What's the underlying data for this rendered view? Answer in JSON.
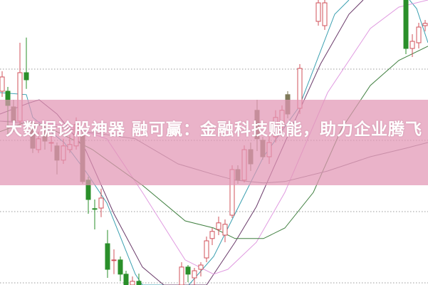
{
  "headline": "大数据诊股神器 融可赢：金融科技赋能，助力企业腾飞",
  "banner_color": "#e296b4",
  "chart_data": {
    "type": "candlestick",
    "title": "",
    "xlabel": "",
    "ylabel": "",
    "ylim": [
      0,
      100
    ],
    "grid": "horizontal-dotted",
    "colors": {
      "up": "#d0505a",
      "down": "#2a8f2a",
      "down_dim": "#7f7a5a"
    },
    "candles": [
      {
        "open": 73,
        "close": 68,
        "high": 75,
        "low": 66,
        "dir": "up"
      },
      {
        "open": 68,
        "close": 63,
        "high": 69.5,
        "low": 52.5,
        "dir": "down"
      },
      {
        "open": 62.5,
        "close": 57.5,
        "high": 65,
        "low": 53.8,
        "dir": "dim"
      },
      {
        "open": 57.5,
        "close": 74.5,
        "high": 85,
        "low": 56,
        "dir": "up"
      },
      {
        "open": 74.5,
        "close": 72,
        "high": 86.8,
        "low": 68.8,
        "dir": "down"
      },
      {
        "open": 55.5,
        "close": 48,
        "high": 56.3,
        "low": 46.3,
        "dir": "dim"
      },
      {
        "open": 47.5,
        "close": 51.3,
        "high": 53.8,
        "low": 46.3,
        "dir": "up"
      },
      {
        "open": 53.8,
        "close": 50.5,
        "high": 56.3,
        "low": 47.5,
        "dir": "dim"
      },
      {
        "open": 50,
        "close": 50,
        "high": 52.5,
        "low": 46.8,
        "dir": "up"
      },
      {
        "open": 48.8,
        "close": 43.8,
        "high": 50,
        "low": 38.8,
        "dir": "dim"
      },
      {
        "open": 43.8,
        "close": 48.8,
        "high": 51.3,
        "low": 42.5,
        "dir": "up"
      },
      {
        "open": 47.5,
        "close": 49.3,
        "high": 52.5,
        "low": 46.3,
        "dir": "up"
      },
      {
        "open": 48.8,
        "close": 56.3,
        "high": 58.8,
        "low": 47.5,
        "dir": "up"
      },
      {
        "open": 52.5,
        "close": 36.3,
        "high": 53.8,
        "low": 35.5,
        "dir": "dim"
      },
      {
        "open": 36.8,
        "close": 30,
        "high": 38,
        "low": 25,
        "dir": "down"
      },
      {
        "open": 26.8,
        "close": 26.8,
        "high": 30,
        "low": 19.5,
        "dir": "down"
      },
      {
        "open": 27,
        "close": 30.5,
        "high": 33.8,
        "low": 23.8,
        "dir": "up"
      },
      {
        "open": 14.5,
        "close": 5.5,
        "high": 19.3,
        "low": 2.5,
        "dir": "down"
      },
      {
        "open": 8.8,
        "close": 8.8,
        "high": 12.5,
        "low": 3.8,
        "dir": "up"
      },
      {
        "open": 8.8,
        "close": 3.8,
        "high": 10,
        "low": 1.3,
        "dir": "down"
      },
      {
        "open": 3.8,
        "close": 0,
        "high": 5,
        "low": 0,
        "dir": "down"
      },
      {
        "open": 0,
        "close": 1.3,
        "high": 3,
        "low": 0,
        "dir": "up"
      },
      {
        "open": 1.3,
        "close": 0,
        "high": 4,
        "low": 0,
        "dir": "down"
      },
      {
        "open": 0,
        "close": 6.3,
        "high": 8,
        "low": 0,
        "dir": "up"
      },
      {
        "open": 6.3,
        "close": 3.8,
        "high": 7,
        "low": 1,
        "dir": "down"
      },
      {
        "open": 2.5,
        "close": 5,
        "high": 6,
        "low": 0,
        "dir": "up"
      },
      {
        "open": 5.5,
        "close": 7,
        "high": 8,
        "low": 3,
        "dir": "up"
      },
      {
        "open": 9.5,
        "close": 15.5,
        "high": 17,
        "low": 8,
        "dir": "up"
      },
      {
        "open": 16.3,
        "close": 18.8,
        "high": 20,
        "low": 14,
        "dir": "up"
      },
      {
        "open": 19.5,
        "close": 21.8,
        "high": 24,
        "low": 17.5,
        "dir": "up"
      },
      {
        "open": 17.5,
        "close": 21.3,
        "high": 23,
        "low": 15,
        "dir": "up"
      },
      {
        "open": 24.5,
        "close": 40.5,
        "high": 42,
        "low": 23.5,
        "dir": "up"
      },
      {
        "open": 40.5,
        "close": 36.8,
        "high": 42,
        "low": 35.5,
        "dir": "dim"
      },
      {
        "open": 36.8,
        "close": 47.5,
        "high": 49,
        "low": 36,
        "dir": "up"
      },
      {
        "open": 47.5,
        "close": 42.5,
        "high": 50,
        "low": 40,
        "dir": "dim"
      },
      {
        "open": 61.3,
        "close": 51.3,
        "high": 65,
        "low": 47,
        "dir": "dim"
      },
      {
        "open": 50.8,
        "close": 45,
        "high": 52,
        "low": 44,
        "dir": "dim"
      },
      {
        "open": 45,
        "close": 50,
        "high": 52.5,
        "low": 42.5,
        "dir": "up"
      },
      {
        "open": 52,
        "close": 58.8,
        "high": 61.3,
        "low": 50,
        "dir": "up"
      },
      {
        "open": 55.5,
        "close": 61.3,
        "high": 63,
        "low": 52,
        "dir": "up"
      },
      {
        "open": 60,
        "close": 66.8,
        "high": 68,
        "low": 58.5,
        "dir": "dim"
      },
      {
        "open": 62,
        "close": 76,
        "high": 77.5,
        "low": 60,
        "dir": "up"
      },
      {
        "open": 92.5,
        "close": 99,
        "high": 100,
        "low": 91,
        "dir": "up"
      },
      {
        "open": 91,
        "close": 99,
        "high": 100,
        "low": 89.5,
        "dir": "up"
      },
      {
        "open": 100,
        "close": 83,
        "high": 100,
        "low": 81,
        "dir": "down"
      },
      {
        "open": 83,
        "close": 85.5,
        "high": 88,
        "low": 80,
        "dir": "up"
      },
      {
        "open": 85,
        "close": 90.5,
        "high": 92,
        "low": 83,
        "dir": "up"
      },
      {
        "open": 91,
        "close": 91.8,
        "high": 93,
        "low": 89,
        "dir": "up"
      }
    ],
    "moving_averages": [
      {
        "color": "#3a9fb0",
        "points": [
          [
            0,
            67.5
          ],
          [
            37,
            66.8
          ],
          [
            46,
            58.8
          ],
          [
            90,
            50
          ],
          [
            120,
            40
          ],
          [
            150,
            28.8
          ],
          [
            190,
            3.8
          ],
          [
            200,
            0
          ],
          [
            265,
            0
          ],
          [
            300,
            10
          ],
          [
            330,
            25
          ],
          [
            370,
            45
          ],
          [
            420,
            62.5
          ],
          [
            470,
            95
          ],
          [
            490,
            100
          ]
        ]
      },
      {
        "color": "#3a9fb0",
        "points": [
          [
            575,
            100
          ],
          [
            585,
            97
          ],
          [
            601,
            85
          ]
        ]
      },
      {
        "color": "#6a3a6a",
        "points": [
          [
            0,
            60
          ],
          [
            40,
            63.8
          ],
          [
            55,
            65
          ],
          [
            80,
            60
          ],
          [
            120,
            47.5
          ],
          [
            160,
            25
          ],
          [
            200,
            6.3
          ],
          [
            230,
            0
          ],
          [
            290,
            0
          ],
          [
            330,
            15
          ],
          [
            360,
            27.5
          ],
          [
            400,
            50
          ],
          [
            450,
            77.5
          ],
          [
            490,
            95
          ],
          [
            510,
            100
          ]
        ]
      },
      {
        "color": "#e09ae0",
        "points": [
          [
            0,
            57.5
          ],
          [
            50,
            57.5
          ],
          [
            100,
            55.5
          ],
          [
            150,
            51.3
          ],
          [
            200,
            32.5
          ],
          [
            260,
            8.8
          ],
          [
            300,
            3.8
          ],
          [
            320,
            5.5
          ],
          [
            360,
            15
          ],
          [
            400,
            32.5
          ],
          [
            460,
            67.5
          ],
          [
            520,
            90
          ],
          [
            560,
            97.5
          ],
          [
            601,
            100
          ]
        ]
      },
      {
        "color": "#3f7f3f",
        "points": [
          [
            0,
            53.8
          ],
          [
            40,
            57.5
          ],
          [
            80,
            53.8
          ],
          [
            130,
            47.5
          ],
          [
            200,
            35
          ],
          [
            260,
            22.5
          ],
          [
            300,
            20
          ],
          [
            330,
            16.3
          ],
          [
            370,
            16.3
          ],
          [
            400,
            20
          ],
          [
            440,
            32.5
          ],
          [
            480,
            55
          ],
          [
            520,
            70
          ],
          [
            560,
            78.8
          ],
          [
            601,
            83.8
          ]
        ]
      },
      {
        "color": "#8a7a8a",
        "points": [
          [
            0,
            57.5
          ],
          [
            60,
            56.3
          ],
          [
            120,
            53.8
          ],
          [
            190,
            51.3
          ],
          [
            250,
            42.5
          ],
          [
            300,
            38.8
          ],
          [
            330,
            36.8
          ],
          [
            370,
            35.8
          ],
          [
            400,
            36.3
          ],
          [
            460,
            40
          ],
          [
            520,
            45
          ],
          [
            570,
            48
          ],
          [
            601,
            50
          ]
        ]
      }
    ]
  }
}
